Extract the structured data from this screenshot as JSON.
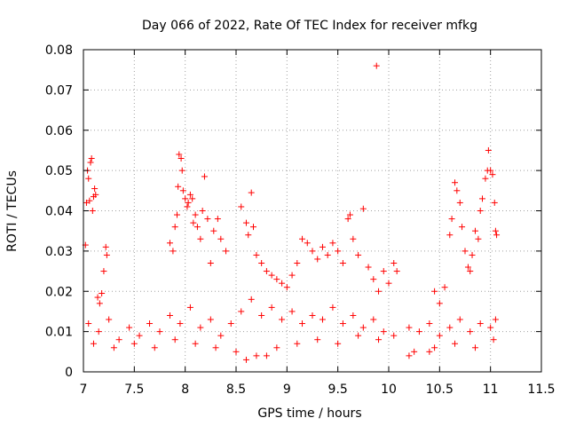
{
  "chart_data": {
    "type": "scatter",
    "title": "Day 066 of 2022, Rate Of TEC Index for receiver mfkg",
    "xlabel": "GPS time / hours",
    "ylabel": "ROTI / TECUs",
    "xlim": [
      7,
      11.5
    ],
    "ylim": [
      0,
      0.08
    ],
    "x_ticks": [
      7,
      7.5,
      8,
      8.5,
      9,
      9.5,
      10,
      10.5,
      11,
      11.5
    ],
    "x_tick_labels": [
      "7",
      "7.5",
      "8",
      "8.5",
      "9",
      "9.5",
      "10",
      "10.5",
      "11",
      "11.5"
    ],
    "y_ticks": [
      0,
      0.01,
      0.02,
      0.03,
      0.04,
      0.05,
      0.06,
      0.07,
      0.08
    ],
    "y_tick_labels": [
      "0",
      "0.01",
      "0.02",
      "0.03",
      "0.04",
      "0.05",
      "0.06",
      "0.07",
      "0.08"
    ],
    "grid": true,
    "marker": "+",
    "series": [
      {
        "name": "ROTI",
        "color": "#ff0000",
        "points": [
          [
            7.02,
            0.0315
          ],
          [
            7.03,
            0.042
          ],
          [
            7.04,
            0.05
          ],
          [
            7.05,
            0.048
          ],
          [
            7.06,
            0.0425
          ],
          [
            7.07,
            0.052
          ],
          [
            7.08,
            0.053
          ],
          [
            7.09,
            0.04
          ],
          [
            7.1,
            0.0435
          ],
          [
            7.11,
            0.0455
          ],
          [
            7.12,
            0.044
          ],
          [
            7.14,
            0.0185
          ],
          [
            7.16,
            0.017
          ],
          [
            7.18,
            0.0195
          ],
          [
            7.2,
            0.025
          ],
          [
            7.22,
            0.031
          ],
          [
            7.23,
            0.029
          ],
          [
            7.85,
            0.032
          ],
          [
            7.88,
            0.03
          ],
          [
            7.9,
            0.036
          ],
          [
            7.92,
            0.039
          ],
          [
            7.93,
            0.046
          ],
          [
            7.94,
            0.054
          ],
          [
            7.96,
            0.053
          ],
          [
            7.97,
            0.05
          ],
          [
            7.98,
            0.045
          ],
          [
            8.0,
            0.043
          ],
          [
            8.02,
            0.041
          ],
          [
            8.03,
            0.042
          ],
          [
            8.05,
            0.044
          ],
          [
            8.07,
            0.043
          ],
          [
            8.08,
            0.037
          ],
          [
            8.1,
            0.039
          ],
          [
            8.12,
            0.036
          ],
          [
            8.15,
            0.033
          ],
          [
            8.17,
            0.04
          ],
          [
            8.19,
            0.0485
          ],
          [
            8.22,
            0.038
          ],
          [
            8.25,
            0.027
          ],
          [
            8.28,
            0.035
          ],
          [
            8.32,
            0.038
          ],
          [
            8.35,
            0.033
          ],
          [
            8.4,
            0.03
          ],
          [
            8.55,
            0.041
          ],
          [
            8.6,
            0.037
          ],
          [
            8.62,
            0.034
          ],
          [
            8.65,
            0.0445
          ],
          [
            8.67,
            0.036
          ],
          [
            8.7,
            0.029
          ],
          [
            8.75,
            0.027
          ],
          [
            8.8,
            0.025
          ],
          [
            8.85,
            0.024
          ],
          [
            8.9,
            0.023
          ],
          [
            8.95,
            0.022
          ],
          [
            9.0,
            0.021
          ],
          [
            9.05,
            0.024
          ],
          [
            9.1,
            0.027
          ],
          [
            9.15,
            0.033
          ],
          [
            9.2,
            0.032
          ],
          [
            9.25,
            0.03
          ],
          [
            9.3,
            0.028
          ],
          [
            9.35,
            0.031
          ],
          [
            9.4,
            0.029
          ],
          [
            9.45,
            0.032
          ],
          [
            9.5,
            0.03
          ],
          [
            9.55,
            0.027
          ],
          [
            9.6,
            0.038
          ],
          [
            9.62,
            0.039
          ],
          [
            9.65,
            0.033
          ],
          [
            9.7,
            0.029
          ],
          [
            9.75,
            0.0405
          ],
          [
            9.8,
            0.026
          ],
          [
            9.85,
            0.023
          ],
          [
            9.88,
            0.076
          ],
          [
            9.9,
            0.02
          ],
          [
            9.95,
            0.025
          ],
          [
            10.0,
            0.022
          ],
          [
            10.05,
            0.027
          ],
          [
            10.08,
            0.025
          ],
          [
            10.45,
            0.02
          ],
          [
            10.5,
            0.017
          ],
          [
            10.55,
            0.021
          ],
          [
            10.6,
            0.034
          ],
          [
            10.62,
            0.038
          ],
          [
            10.65,
            0.047
          ],
          [
            10.67,
            0.045
          ],
          [
            10.7,
            0.042
          ],
          [
            10.72,
            0.036
          ],
          [
            10.75,
            0.03
          ],
          [
            10.78,
            0.026
          ],
          [
            10.8,
            0.025
          ],
          [
            10.82,
            0.029
          ],
          [
            10.85,
            0.035
          ],
          [
            10.88,
            0.033
          ],
          [
            10.9,
            0.04
          ],
          [
            10.92,
            0.043
          ],
          [
            10.95,
            0.048
          ],
          [
            10.97,
            0.05
          ],
          [
            10.98,
            0.055
          ],
          [
            11.0,
            0.05
          ],
          [
            11.02,
            0.049
          ],
          [
            11.04,
            0.042
          ],
          [
            11.05,
            0.035
          ],
          [
            11.06,
            0.034
          ],
          [
            7.05,
            0.012
          ],
          [
            7.15,
            0.01
          ],
          [
            7.25,
            0.013
          ],
          [
            7.35,
            0.008
          ],
          [
            7.45,
            0.011
          ],
          [
            7.55,
            0.009
          ],
          [
            7.65,
            0.012
          ],
          [
            7.75,
            0.01
          ],
          [
            7.85,
            0.014
          ],
          [
            7.95,
            0.012
          ],
          [
            8.05,
            0.016
          ],
          [
            8.15,
            0.011
          ],
          [
            8.25,
            0.013
          ],
          [
            8.35,
            0.009
          ],
          [
            8.45,
            0.012
          ],
          [
            8.55,
            0.015
          ],
          [
            8.65,
            0.018
          ],
          [
            8.75,
            0.014
          ],
          [
            8.85,
            0.016
          ],
          [
            8.95,
            0.013
          ],
          [
            9.05,
            0.015
          ],
          [
            9.15,
            0.012
          ],
          [
            9.25,
            0.014
          ],
          [
            9.35,
            0.013
          ],
          [
            9.45,
            0.016
          ],
          [
            9.55,
            0.012
          ],
          [
            9.65,
            0.014
          ],
          [
            9.75,
            0.011
          ],
          [
            9.85,
            0.013
          ],
          [
            9.95,
            0.01
          ],
          [
            10.05,
            0.009
          ],
          [
            10.2,
            0.011
          ],
          [
            10.3,
            0.01
          ],
          [
            10.4,
            0.012
          ],
          [
            10.5,
            0.009
          ],
          [
            10.6,
            0.011
          ],
          [
            10.7,
            0.013
          ],
          [
            10.8,
            0.01
          ],
          [
            10.9,
            0.012
          ],
          [
            11.0,
            0.011
          ],
          [
            11.05,
            0.013
          ],
          [
            7.1,
            0.007
          ],
          [
            7.3,
            0.006
          ],
          [
            7.5,
            0.007
          ],
          [
            7.7,
            0.006
          ],
          [
            7.9,
            0.008
          ],
          [
            8.1,
            0.007
          ],
          [
            8.3,
            0.006
          ],
          [
            8.5,
            0.005
          ],
          [
            8.7,
            0.004
          ],
          [
            8.9,
            0.006
          ],
          [
            9.1,
            0.007
          ],
          [
            9.3,
            0.008
          ],
          [
            9.5,
            0.007
          ],
          [
            9.7,
            0.009
          ],
          [
            9.9,
            0.008
          ],
          [
            10.25,
            0.005
          ],
          [
            10.45,
            0.006
          ],
          [
            10.65,
            0.007
          ],
          [
            10.85,
            0.006
          ],
          [
            11.03,
            0.008
          ],
          [
            8.6,
            0.003
          ],
          [
            8.8,
            0.004
          ],
          [
            10.2,
            0.004
          ],
          [
            10.4,
            0.005
          ]
        ]
      }
    ]
  }
}
